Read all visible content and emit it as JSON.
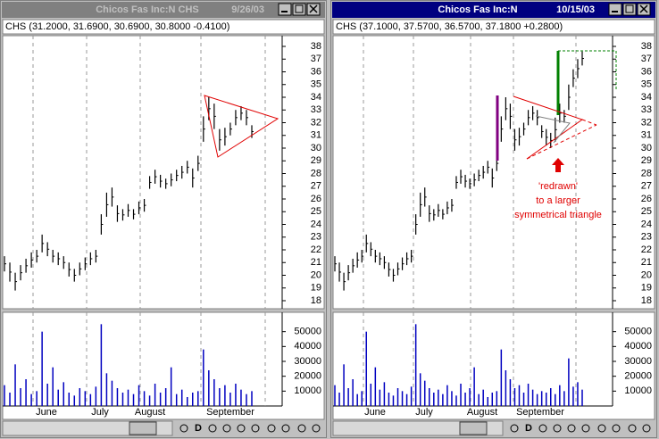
{
  "windows": [
    {
      "title": "Chicos Fas Inc:N  CHS",
      "date": "9/26/03",
      "active": false,
      "info": "CHS (31.2000, 31.6900, 30.6900, 30.8000 -0.4100)",
      "price_ylim": [
        17,
        39
      ],
      "price_yticks": [
        18,
        19,
        20,
        21,
        22,
        23,
        24,
        25,
        26,
        27,
        28,
        29,
        30,
        31,
        32,
        33,
        34,
        35,
        36,
        37,
        38
      ],
      "volume_ylim": [
        0,
        63000
      ],
      "volume_yticks": [
        10000,
        20000,
        30000,
        40000,
        50000
      ],
      "months": [
        "June",
        "July",
        "August",
        "September"
      ],
      "bars": [
        [
          21.5,
          20.3
        ],
        [
          21,
          19.5
        ],
        [
          20.2,
          18.8
        ],
        [
          20.8,
          19.6
        ],
        [
          21.3,
          20.2
        ],
        [
          21.8,
          20.6
        ],
        [
          22,
          21
        ],
        [
          23.2,
          21.8
        ],
        [
          22.6,
          21.5
        ],
        [
          22,
          21
        ],
        [
          21.8,
          20.8
        ],
        [
          21.5,
          20.5
        ],
        [
          21,
          19.9
        ],
        [
          20.5,
          19.5
        ],
        [
          21,
          20
        ],
        [
          21.4,
          20.4
        ],
        [
          21.8,
          20.8
        ],
        [
          22,
          21
        ],
        [
          24.8,
          23.2
        ],
        [
          26.5,
          24.6
        ],
        [
          26.9,
          25.4
        ],
        [
          25.5,
          24.2
        ],
        [
          25.2,
          24.3
        ],
        [
          25.6,
          24.6
        ],
        [
          25.2,
          24.4
        ],
        [
          25.8,
          24.8
        ],
        [
          26,
          25
        ],
        [
          27.8,
          26.8
        ],
        [
          28.3,
          27.2
        ],
        [
          27.9,
          26.9
        ],
        [
          27.6,
          26.8
        ],
        [
          28,
          27
        ],
        [
          28.3,
          27.4
        ],
        [
          28.6,
          27.6
        ],
        [
          29,
          28
        ],
        [
          28.4,
          26.9
        ],
        [
          29.4,
          28.2
        ],
        [
          32.5,
          30.5
        ],
        [
          34,
          32.2
        ],
        [
          33.5,
          31.5
        ],
        [
          31.5,
          29.8
        ],
        [
          31.6,
          30.2
        ],
        [
          32,
          31
        ],
        [
          33,
          31.8
        ],
        [
          33.3,
          32.2
        ],
        [
          33,
          31.8
        ],
        [
          31.8,
          30.8
        ]
      ],
      "volumes": [
        14000,
        9000,
        28000,
        12000,
        18000,
        8000,
        10000,
        50000,
        15000,
        26000,
        11000,
        16000,
        9000,
        7000,
        12000,
        10000,
        8000,
        13000,
        55000,
        22000,
        17000,
        12000,
        9000,
        11000,
        8000,
        14000,
        10000,
        7000,
        15000,
        9000,
        12000,
        26000,
        8000,
        11000,
        6000,
        9000,
        10000,
        38000,
        24000,
        18000,
        12000,
        14000,
        9000,
        15000,
        11000,
        8000,
        10000
      ],
      "toolbar_label": "D"
    },
    {
      "title": "Chicos Fas Inc:N",
      "date": "10/15/03",
      "active": true,
      "info": "CHS (37.1000, 37.5700, 36.5700, 37.1800 +0.2800)",
      "price_ylim": [
        17,
        39
      ],
      "price_yticks": [
        18,
        19,
        20,
        21,
        22,
        23,
        24,
        25,
        26,
        27,
        28,
        29,
        30,
        31,
        32,
        33,
        34,
        35,
        36,
        37,
        38
      ],
      "volume_ylim": [
        0,
        63000
      ],
      "volume_yticks": [
        10000,
        20000,
        30000,
        40000,
        50000
      ],
      "months": [
        "June",
        "July",
        "August",
        "September"
      ],
      "bars": [
        [
          21.5,
          20.3
        ],
        [
          21,
          19.5
        ],
        [
          20.2,
          18.8
        ],
        [
          20.8,
          19.6
        ],
        [
          21.3,
          20.2
        ],
        [
          21.8,
          20.6
        ],
        [
          22,
          21
        ],
        [
          23.2,
          21.8
        ],
        [
          22.6,
          21.5
        ],
        [
          22,
          21
        ],
        [
          21.8,
          20.8
        ],
        [
          21.5,
          20.5
        ],
        [
          21,
          19.9
        ],
        [
          20.5,
          19.5
        ],
        [
          21,
          20
        ],
        [
          21.4,
          20.4
        ],
        [
          21.8,
          20.8
        ],
        [
          22,
          21
        ],
        [
          24.8,
          23.2
        ],
        [
          26.5,
          24.6
        ],
        [
          26.9,
          25.4
        ],
        [
          25.5,
          24.2
        ],
        [
          25.2,
          24.3
        ],
        [
          25.6,
          24.6
        ],
        [
          25.2,
          24.4
        ],
        [
          25.8,
          24.8
        ],
        [
          26,
          25
        ],
        [
          27.8,
          26.8
        ],
        [
          28.3,
          27.2
        ],
        [
          27.9,
          26.9
        ],
        [
          27.6,
          26.8
        ],
        [
          28,
          27
        ],
        [
          28.3,
          27.4
        ],
        [
          28.6,
          27.6
        ],
        [
          29,
          28
        ],
        [
          28.4,
          26.9
        ],
        [
          29.4,
          28.2
        ],
        [
          32.5,
          30.5
        ],
        [
          34,
          32.2
        ],
        [
          33.5,
          31.5
        ],
        [
          31.5,
          29.8
        ],
        [
          31.6,
          30.2
        ],
        [
          32,
          31
        ],
        [
          33,
          31.8
        ],
        [
          33.3,
          32.2
        ],
        [
          33,
          31.8
        ],
        [
          31.8,
          30.8
        ],
        [
          31.5,
          30.2
        ],
        [
          31.2,
          30
        ],
        [
          32.4,
          30.5
        ],
        [
          33.5,
          32
        ],
        [
          33,
          32
        ],
        [
          35,
          33
        ],
        [
          36.2,
          34.8
        ],
        [
          37,
          35.5
        ],
        [
          37.6,
          36.5
        ]
      ],
      "volumes": [
        14000,
        9000,
        28000,
        12000,
        18000,
        8000,
        10000,
        50000,
        15000,
        26000,
        11000,
        16000,
        9000,
        7000,
        12000,
        10000,
        8000,
        13000,
        55000,
        22000,
        17000,
        12000,
        9000,
        11000,
        8000,
        14000,
        10000,
        7000,
        15000,
        9000,
        12000,
        26000,
        8000,
        11000,
        6000,
        9000,
        10000,
        38000,
        24000,
        18000,
        12000,
        14000,
        9000,
        15000,
        11000,
        8000,
        10000,
        9000,
        12000,
        8000,
        14000,
        10000,
        32000,
        13000,
        16000,
        11000
      ],
      "annotation": [
        "'redrawn'",
        "to a larger",
        "symmetrical triangle"
      ],
      "toolbar_label": "D"
    }
  ]
}
